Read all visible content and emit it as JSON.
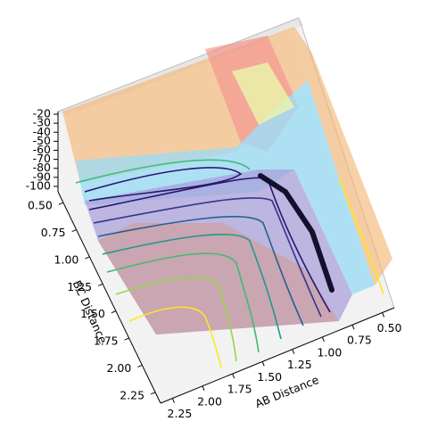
{
  "chart_data": {
    "type": "surface3d",
    "xlabel": "AB Distance",
    "ylabel": "BC Distance",
    "xlim": [
      0.4,
      2.35
    ],
    "ylim": [
      0.4,
      2.35
    ],
    "zlim": [
      -106,
      -17
    ],
    "xticks": [
      {
        "value": 0.5,
        "label": "0.50"
      },
      0.75,
      {
        "value": 1.0,
        "label": "1.00"
      },
      1.25,
      {
        "value": 1.5,
        "label": "1.50"
      },
      1.75,
      {
        "value": 2.0,
        "label": "2.00"
      },
      2.25
    ],
    "yticks": [
      {
        "value": 0.5,
        "label": "0.50"
      },
      0.75,
      {
        "value": 1.0,
        "label": "1.00"
      },
      1.25,
      {
        "value": 1.5,
        "label": "1.50"
      },
      1.75,
      {
        "value": 2.0,
        "label": "2.00"
      },
      2.25
    ],
    "zticks": [
      -20,
      -30,
      -40,
      -50,
      -60,
      -70,
      -80,
      -90,
      -100
    ]
  }
}
